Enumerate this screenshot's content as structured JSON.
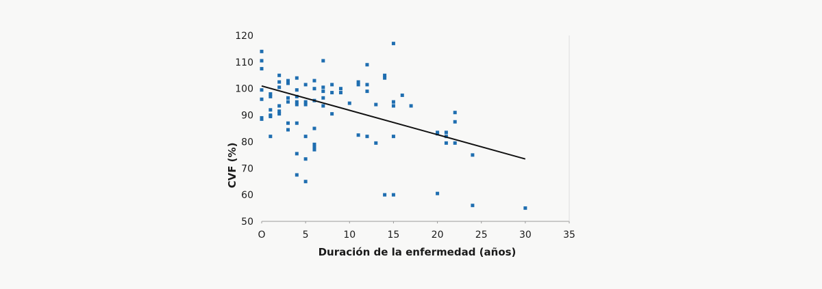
{
  "chart_data": {
    "type": "scatter",
    "title": "",
    "xlabel": "Duración de la enfermedad (años)",
    "ylabel": "CVF (%)",
    "xlim": [
      0,
      35
    ],
    "ylim": [
      50,
      120
    ],
    "xticks": [
      0,
      5,
      10,
      15,
      20,
      25,
      30,
      35
    ],
    "yticks": [
      50,
      60,
      70,
      80,
      90,
      100,
      110,
      120
    ],
    "xtick_labels": [
      "O",
      "5",
      "10",
      "15",
      "20",
      "25",
      "30",
      "35"
    ],
    "ytick_labels": [
      "50",
      "60",
      "70",
      "80",
      "90",
      "100",
      "110",
      "120"
    ],
    "grid": false,
    "colors": {
      "points": "#1f6eb0",
      "trend": "#111111"
    },
    "trendline": {
      "x": [
        0,
        30
      ],
      "y": [
        101,
        73.5
      ]
    },
    "points": [
      [
        0,
        114
      ],
      [
        0,
        110.5
      ],
      [
        0,
        107.5
      ],
      [
        0,
        99.5
      ],
      [
        0,
        96
      ],
      [
        0,
        89
      ],
      [
        0,
        88.5
      ],
      [
        1,
        98
      ],
      [
        1,
        97
      ],
      [
        1,
        92
      ],
      [
        1,
        90
      ],
      [
        1,
        89.5
      ],
      [
        1,
        82
      ],
      [
        2,
        105
      ],
      [
        2,
        102.5
      ],
      [
        2,
        100.5
      ],
      [
        2,
        93.5
      ],
      [
        2,
        91.5
      ],
      [
        2,
        90.5
      ],
      [
        3,
        103
      ],
      [
        3,
        102
      ],
      [
        3,
        96.5
      ],
      [
        3,
        95
      ],
      [
        3,
        87
      ],
      [
        3,
        84.5
      ],
      [
        4,
        104
      ],
      [
        4,
        99.5
      ],
      [
        4,
        97
      ],
      [
        4,
        95
      ],
      [
        4,
        94
      ],
      [
        4,
        87
      ],
      [
        4,
        75.5
      ],
      [
        4,
        67.5
      ],
      [
        5,
        101.5
      ],
      [
        5,
        95
      ],
      [
        5,
        94
      ],
      [
        5,
        82
      ],
      [
        5,
        73.5
      ],
      [
        5,
        65
      ],
      [
        6,
        103
      ],
      [
        6,
        100
      ],
      [
        6,
        95.5
      ],
      [
        6,
        85
      ],
      [
        6,
        79
      ],
      [
        6,
        78
      ],
      [
        6,
        77
      ],
      [
        7,
        110.5
      ],
      [
        7,
        100.5
      ],
      [
        7,
        99
      ],
      [
        7,
        96.5
      ],
      [
        7,
        93.5
      ],
      [
        8,
        101.5
      ],
      [
        8,
        98.5
      ],
      [
        8,
        90.5
      ],
      [
        9,
        100
      ],
      [
        9,
        98.5
      ],
      [
        10,
        94.5
      ],
      [
        11,
        102.5
      ],
      [
        11,
        101.5
      ],
      [
        11,
        82.5
      ],
      [
        12,
        109
      ],
      [
        12,
        101.5
      ],
      [
        12,
        99
      ],
      [
        12,
        82
      ],
      [
        13,
        94
      ],
      [
        13,
        79.5
      ],
      [
        14,
        105
      ],
      [
        14,
        104
      ],
      [
        14,
        60
      ],
      [
        15,
        117
      ],
      [
        15,
        95
      ],
      [
        15,
        93.5
      ],
      [
        15,
        82
      ],
      [
        15,
        60
      ],
      [
        16,
        97.5
      ],
      [
        17,
        93.5
      ],
      [
        20,
        83.5
      ],
      [
        20,
        83
      ],
      [
        20,
        60.5
      ],
      [
        21,
        83.5
      ],
      [
        21,
        82
      ],
      [
        21,
        79.5
      ],
      [
        22,
        91
      ],
      [
        22,
        87.5
      ],
      [
        22,
        79.5
      ],
      [
        24,
        75
      ],
      [
        24,
        56
      ],
      [
        30,
        55
      ]
    ]
  }
}
